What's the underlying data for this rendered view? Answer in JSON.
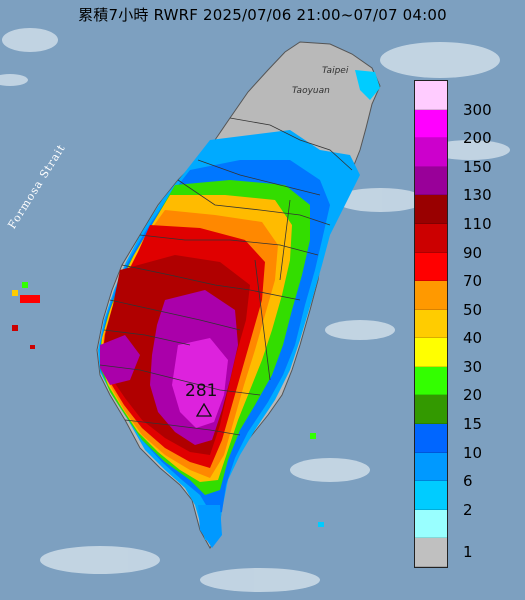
{
  "title": "累積7小時 RWRF 2025/07/06 21:00~07/07 04:00",
  "strait_label": "Formosa Strait",
  "cities": {
    "taipei": "Taipei",
    "taoyuan": "Taoyuan"
  },
  "max_marker": {
    "value": "281",
    "icon": "triangle-icon"
  },
  "legend": [
    {
      "label": "300",
      "color": "#ffccff"
    },
    {
      "label": "200",
      "color": "#ff00ff"
    },
    {
      "label": "150",
      "color": "#cc00cc"
    },
    {
      "label": "130",
      "color": "#990099"
    },
    {
      "label": "110",
      "color": "#990000"
    },
    {
      "label": "90",
      "color": "#cc0000"
    },
    {
      "label": "70",
      "color": "#ff0000"
    },
    {
      "label": "50",
      "color": "#ff9900"
    },
    {
      "label": "40",
      "color": "#ffcc00"
    },
    {
      "label": "30",
      "color": "#ffff00"
    },
    {
      "label": "20",
      "color": "#33ff00"
    },
    {
      "label": "15",
      "color": "#339900"
    },
    {
      "label": "10",
      "color": "#0066ff"
    },
    {
      "label": "6",
      "color": "#0099ff"
    },
    {
      "label": "2",
      "color": "#00ccff"
    },
    {
      "label": "1",
      "color": "#99ffff"
    },
    {
      "label": "",
      "color": "#c0c0c0"
    }
  ]
}
